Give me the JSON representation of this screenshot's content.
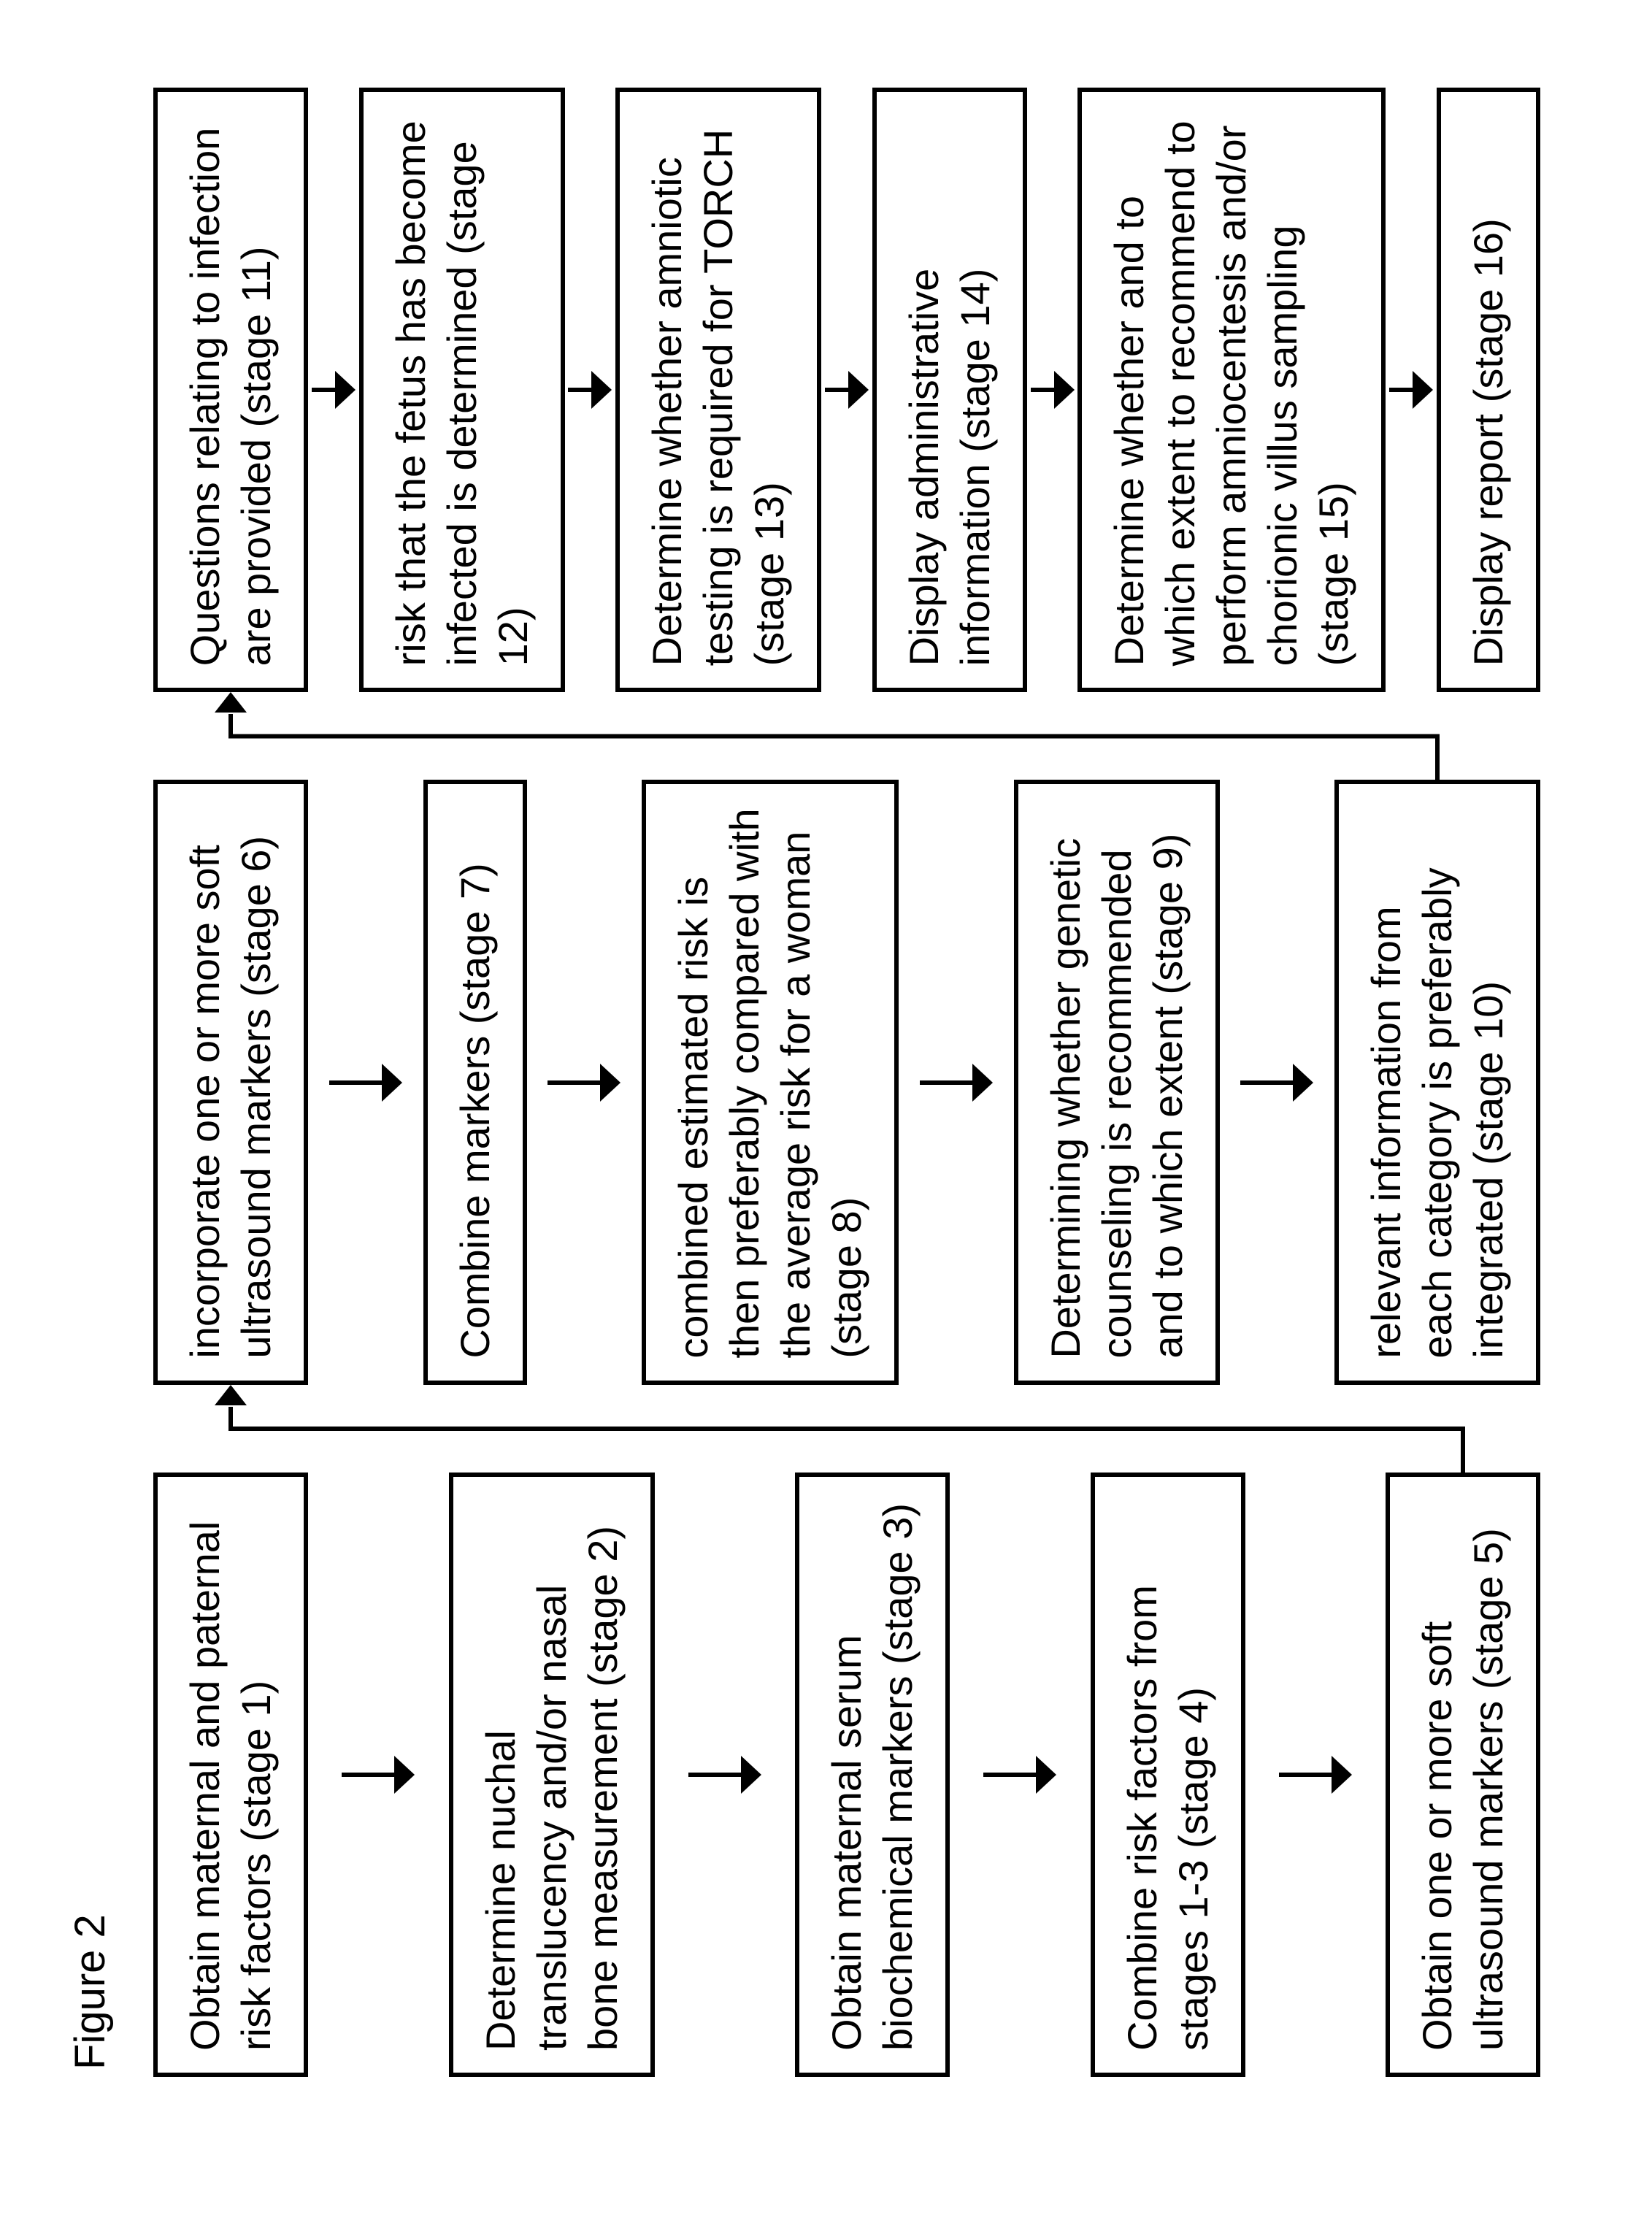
{
  "figure_label": "Figure 2",
  "flow": {
    "type": "flowchart",
    "columns": 3,
    "box_border_color": "#000000",
    "box_border_width": 6,
    "background_color": "#ffffff",
    "text_color": "#000000",
    "font_size_pt": 42,
    "arrow_stroke": "#000000",
    "arrow_stroke_width": 6,
    "nodes": [
      {
        "id": "s1",
        "col": 0,
        "row": 0,
        "text": "Obtain maternal and paternal risk factors (stage 1)"
      },
      {
        "id": "s2",
        "col": 0,
        "row": 1,
        "text": "Determine nuchal translucency and/or nasal bone measurement (stage 2)"
      },
      {
        "id": "s3",
        "col": 0,
        "row": 2,
        "text": "Obtain maternal serum biochemical markers (stage 3)"
      },
      {
        "id": "s4",
        "col": 0,
        "row": 3,
        "text": "Combine risk factors from stages 1-3 (stage 4)"
      },
      {
        "id": "s5",
        "col": 0,
        "row": 4,
        "text": "Obtain one or more soft ultrasound markers (stage 5)"
      },
      {
        "id": "s6",
        "col": 1,
        "row": 0,
        "text": "incorporate one or more soft ultrasound markers (stage 6)"
      },
      {
        "id": "s7",
        "col": 1,
        "row": 1,
        "text": "Combine markers (stage 7)"
      },
      {
        "id": "s8",
        "col": 1,
        "row": 2,
        "text": "combined estimated risk is then preferably compared with the average risk for a woman (stage 8)"
      },
      {
        "id": "s9",
        "col": 1,
        "row": 3,
        "text": "Determining whether genetic counseling is recommended and to which extent (stage 9)"
      },
      {
        "id": "s10",
        "col": 1,
        "row": 4,
        "text": "relevant information from each category is preferably integrated (stage 10)"
      },
      {
        "id": "s11",
        "col": 2,
        "row": 0,
        "text": "Questions relating to infection are provided (stage 11)"
      },
      {
        "id": "s12",
        "col": 2,
        "row": 1,
        "text": "risk that the fetus has become infected is determined (stage 12)"
      },
      {
        "id": "s13",
        "col": 2,
        "row": 2,
        "text": "Determine whether amniotic testing is required for TORCH (stage 13)"
      },
      {
        "id": "s14",
        "col": 2,
        "row": 3,
        "text": "Display administrative information (stage 14)"
      },
      {
        "id": "s15",
        "col": 2,
        "row": 4,
        "text": "Determine whether and to which extent to recommend to perform amniocentesis and/or chorionic villus sampling (stage 15)"
      },
      {
        "id": "s16",
        "col": 2,
        "row": 5,
        "text": "Display report (stage 16)"
      }
    ],
    "edges": [
      {
        "from": "s1",
        "to": "s2",
        "kind": "v"
      },
      {
        "from": "s2",
        "to": "s3",
        "kind": "v"
      },
      {
        "from": "s3",
        "to": "s4",
        "kind": "v"
      },
      {
        "from": "s4",
        "to": "s5",
        "kind": "v"
      },
      {
        "from": "s5",
        "to": "s6",
        "kind": "col-wrap"
      },
      {
        "from": "s6",
        "to": "s7",
        "kind": "v"
      },
      {
        "from": "s7",
        "to": "s8",
        "kind": "v"
      },
      {
        "from": "s8",
        "to": "s9",
        "kind": "v"
      },
      {
        "from": "s9",
        "to": "s10",
        "kind": "v"
      },
      {
        "from": "s10",
        "to": "s11",
        "kind": "col-wrap"
      },
      {
        "from": "s11",
        "to": "s12",
        "kind": "v"
      },
      {
        "from": "s12",
        "to": "s13",
        "kind": "v"
      },
      {
        "from": "s13",
        "to": "s14",
        "kind": "v"
      },
      {
        "from": "s14",
        "to": "s15",
        "kind": "v"
      },
      {
        "from": "s15",
        "to": "s16",
        "kind": "v"
      }
    ]
  }
}
